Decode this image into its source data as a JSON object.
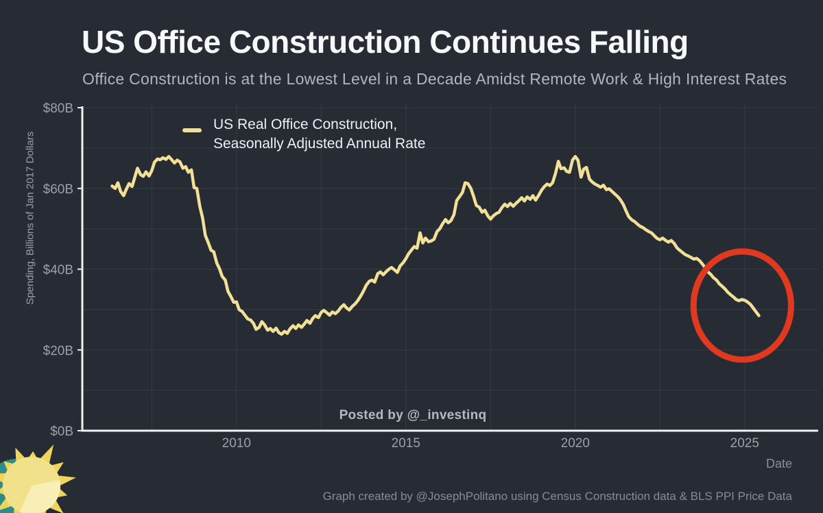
{
  "header": {
    "title": "US Office Construction Continues Falling",
    "subtitle": "Office Construction is at the Lowest Level in a Decade Amidst Remote Work & High Interest Rates"
  },
  "legend": {
    "line1": "US Real Office Construction,",
    "line2": "Seasonally Adjusted Annual Rate",
    "swatch_color": "#f1e096"
  },
  "watermark": {
    "text": "Posted by @_investinq"
  },
  "footer": {
    "x_axis_label": "Date",
    "credit": "Graph created by @JosephPolitano using Census Construction data & BLS PPI Price Data"
  },
  "style": {
    "background": "#262b34",
    "grid_color": "#353c45",
    "axis_color": "#eef0f2",
    "tick_color": "#9aa1a8",
    "line_color": "#f1e096",
    "annotation_color": "#e0391f",
    "sun_teal": "#2e8b89",
    "sun_ray": "#efd45c",
    "sun_body": "#f1e18a",
    "sun_wedge": "#f7efb5"
  },
  "chart_data": {
    "type": "line",
    "title": "US Office Construction Continues Falling",
    "subtitle": "Office Construction is at the Lowest Level in a Decade Amidst Remote Work & High Interest Rates",
    "xlabel": "Date",
    "ylabel": "Spending, Billions of Jan 2017 Dollars",
    "xlim": [
      2005.45,
      2027.17
    ],
    "ylim": [
      0,
      80
    ],
    "grid": "on",
    "legend_position": "top-left-inside",
    "x_ticks": [
      {
        "value": 2010,
        "label": "2010"
      },
      {
        "value": 2015,
        "label": "2015"
      },
      {
        "value": 2020,
        "label": "2020"
      },
      {
        "value": 2025,
        "label": "2025"
      }
    ],
    "y_ticks": [
      {
        "value": 0,
        "label": "$0B"
      },
      {
        "value": 20,
        "label": "$20B"
      },
      {
        "value": 40,
        "label": "$40B"
      },
      {
        "value": 60,
        "label": "$60B"
      },
      {
        "value": 80,
        "label": "$80B"
      }
    ],
    "x_gridlines": [
      2007.5,
      2010,
      2012.5,
      2015,
      2017.5,
      2020,
      2022.5,
      2025
    ],
    "y_gridlines": [
      10,
      20,
      30,
      40,
      50,
      60,
      70,
      80
    ],
    "series": [
      {
        "name": "US Real Office Construction, Seasonally Adjusted Annual Rate",
        "color": "#f1e096",
        "units": "billions of Jan 2017 dollars, SAAR",
        "points": [
          [
            2006.33,
            60.6
          ],
          [
            2006.42,
            60.0
          ],
          [
            2006.5,
            61.4
          ],
          [
            2006.58,
            59.3
          ],
          [
            2006.67,
            58.2
          ],
          [
            2006.75,
            59.8
          ],
          [
            2006.83,
            61.2
          ],
          [
            2006.92,
            60.5
          ],
          [
            2007.0,
            62.8
          ],
          [
            2007.08,
            65.0
          ],
          [
            2007.17,
            63.4
          ],
          [
            2007.25,
            63.0
          ],
          [
            2007.33,
            64.1
          ],
          [
            2007.42,
            63.1
          ],
          [
            2007.5,
            64.4
          ],
          [
            2007.58,
            66.5
          ],
          [
            2007.67,
            67.3
          ],
          [
            2007.75,
            67.1
          ],
          [
            2007.83,
            67.6
          ],
          [
            2007.92,
            67.2
          ],
          [
            2008.0,
            67.9
          ],
          [
            2008.08,
            67.2
          ],
          [
            2008.17,
            66.3
          ],
          [
            2008.25,
            67.0
          ],
          [
            2008.33,
            66.6
          ],
          [
            2008.42,
            65.0
          ],
          [
            2008.5,
            65.4
          ],
          [
            2008.58,
            64.0
          ],
          [
            2008.67,
            64.6
          ],
          [
            2008.75,
            60.2
          ],
          [
            2008.83,
            60.0
          ],
          [
            2008.92,
            55.5
          ],
          [
            2009.0,
            52.7
          ],
          [
            2009.08,
            48.4
          ],
          [
            2009.17,
            46.5
          ],
          [
            2009.25,
            44.7
          ],
          [
            2009.33,
            44.3
          ],
          [
            2009.42,
            41.5
          ],
          [
            2009.5,
            40.1
          ],
          [
            2009.58,
            38.2
          ],
          [
            2009.67,
            37.3
          ],
          [
            2009.75,
            34.5
          ],
          [
            2009.83,
            33.3
          ],
          [
            2009.92,
            31.8
          ],
          [
            2010.0,
            31.9
          ],
          [
            2010.08,
            30.0
          ],
          [
            2010.17,
            29.5
          ],
          [
            2010.25,
            28.6
          ],
          [
            2010.33,
            27.7
          ],
          [
            2010.42,
            27.4
          ],
          [
            2010.5,
            26.6
          ],
          [
            2010.58,
            25.1
          ],
          [
            2010.67,
            25.6
          ],
          [
            2010.75,
            27.0
          ],
          [
            2010.83,
            26.2
          ],
          [
            2010.92,
            24.9
          ],
          [
            2011.0,
            25.3
          ],
          [
            2011.08,
            24.6
          ],
          [
            2011.17,
            25.4
          ],
          [
            2011.25,
            24.3
          ],
          [
            2011.33,
            23.9
          ],
          [
            2011.42,
            24.6
          ],
          [
            2011.5,
            24.1
          ],
          [
            2011.58,
            25.2
          ],
          [
            2011.67,
            26.0
          ],
          [
            2011.75,
            25.3
          ],
          [
            2011.83,
            26.2
          ],
          [
            2011.92,
            25.6
          ],
          [
            2012.0,
            26.4
          ],
          [
            2012.08,
            27.3
          ],
          [
            2012.17,
            26.6
          ],
          [
            2012.25,
            27.8
          ],
          [
            2012.33,
            28.5
          ],
          [
            2012.42,
            28.0
          ],
          [
            2012.5,
            29.3
          ],
          [
            2012.58,
            29.8
          ],
          [
            2012.67,
            29.2
          ],
          [
            2012.75,
            28.6
          ],
          [
            2012.83,
            29.4
          ],
          [
            2012.92,
            29.0
          ],
          [
            2013.0,
            29.6
          ],
          [
            2013.08,
            30.5
          ],
          [
            2013.17,
            31.2
          ],
          [
            2013.25,
            30.4
          ],
          [
            2013.33,
            29.9
          ],
          [
            2013.42,
            30.8
          ],
          [
            2013.5,
            31.4
          ],
          [
            2013.58,
            32.2
          ],
          [
            2013.67,
            33.4
          ],
          [
            2013.75,
            34.6
          ],
          [
            2013.83,
            36.0
          ],
          [
            2013.92,
            37.0
          ],
          [
            2014.0,
            37.3
          ],
          [
            2014.08,
            36.8
          ],
          [
            2014.17,
            38.9
          ],
          [
            2014.25,
            39.3
          ],
          [
            2014.33,
            38.6
          ],
          [
            2014.42,
            39.4
          ],
          [
            2014.5,
            40.0
          ],
          [
            2014.58,
            40.4
          ],
          [
            2014.67,
            39.8
          ],
          [
            2014.75,
            39.2
          ],
          [
            2014.83,
            40.8
          ],
          [
            2014.92,
            41.6
          ],
          [
            2015.0,
            42.6
          ],
          [
            2015.08,
            43.8
          ],
          [
            2015.17,
            44.8
          ],
          [
            2015.25,
            45.6
          ],
          [
            2015.33,
            45.2
          ],
          [
            2015.42,
            49.0
          ],
          [
            2015.5,
            46.5
          ],
          [
            2015.58,
            47.7
          ],
          [
            2015.67,
            46.8
          ],
          [
            2015.75,
            47.0
          ],
          [
            2015.83,
            47.4
          ],
          [
            2015.92,
            49.3
          ],
          [
            2016.0,
            50.0
          ],
          [
            2016.08,
            51.2
          ],
          [
            2016.17,
            52.3
          ],
          [
            2016.25,
            51.5
          ],
          [
            2016.33,
            52.0
          ],
          [
            2016.42,
            53.5
          ],
          [
            2016.5,
            57.0
          ],
          [
            2016.58,
            57.9
          ],
          [
            2016.67,
            59.0
          ],
          [
            2016.75,
            61.4
          ],
          [
            2016.83,
            61.2
          ],
          [
            2016.92,
            60.0
          ],
          [
            2017.0,
            58.0
          ],
          [
            2017.08,
            55.8
          ],
          [
            2017.17,
            55.3
          ],
          [
            2017.25,
            54.1
          ],
          [
            2017.33,
            54.6
          ],
          [
            2017.42,
            53.2
          ],
          [
            2017.5,
            52.4
          ],
          [
            2017.58,
            53.2
          ],
          [
            2017.67,
            53.8
          ],
          [
            2017.75,
            54.1
          ],
          [
            2017.83,
            55.2
          ],
          [
            2017.92,
            56.1
          ],
          [
            2018.0,
            55.5
          ],
          [
            2018.08,
            56.3
          ],
          [
            2018.17,
            55.6
          ],
          [
            2018.25,
            56.3
          ],
          [
            2018.33,
            56.9
          ],
          [
            2018.42,
            57.7
          ],
          [
            2018.5,
            56.9
          ],
          [
            2018.58,
            57.9
          ],
          [
            2018.67,
            57.3
          ],
          [
            2018.75,
            58.2
          ],
          [
            2018.83,
            57.1
          ],
          [
            2018.92,
            58.3
          ],
          [
            2019.0,
            59.5
          ],
          [
            2019.08,
            60.4
          ],
          [
            2019.17,
            61.1
          ],
          [
            2019.25,
            60.7
          ],
          [
            2019.33,
            61.4
          ],
          [
            2019.42,
            63.8
          ],
          [
            2019.5,
            66.7
          ],
          [
            2019.58,
            64.9
          ],
          [
            2019.67,
            65.1
          ],
          [
            2019.75,
            64.2
          ],
          [
            2019.83,
            64.0
          ],
          [
            2019.92,
            67.0
          ],
          [
            2020.0,
            67.9
          ],
          [
            2020.08,
            67.0
          ],
          [
            2020.17,
            62.8
          ],
          [
            2020.25,
            64.8
          ],
          [
            2020.33,
            65.2
          ],
          [
            2020.42,
            62.3
          ],
          [
            2020.5,
            61.6
          ],
          [
            2020.58,
            61.1
          ],
          [
            2020.67,
            60.7
          ],
          [
            2020.75,
            60.3
          ],
          [
            2020.83,
            60.8
          ],
          [
            2020.92,
            59.7
          ],
          [
            2021.0,
            59.9
          ],
          [
            2021.08,
            59.3
          ],
          [
            2021.17,
            58.6
          ],
          [
            2021.25,
            58.0
          ],
          [
            2021.33,
            57.2
          ],
          [
            2021.42,
            56.0
          ],
          [
            2021.5,
            54.4
          ],
          [
            2021.58,
            53.0
          ],
          [
            2021.67,
            52.2
          ],
          [
            2021.75,
            51.8
          ],
          [
            2021.83,
            51.2
          ],
          [
            2021.92,
            50.6
          ],
          [
            2022.0,
            50.3
          ],
          [
            2022.08,
            49.8
          ],
          [
            2022.17,
            49.3
          ],
          [
            2022.25,
            49.0
          ],
          [
            2022.33,
            48.3
          ],
          [
            2022.42,
            47.6
          ],
          [
            2022.5,
            47.3
          ],
          [
            2022.58,
            47.7
          ],
          [
            2022.67,
            47.1
          ],
          [
            2022.75,
            46.7
          ],
          [
            2022.83,
            47.1
          ],
          [
            2022.92,
            46.4
          ],
          [
            2023.0,
            45.3
          ],
          [
            2023.08,
            44.7
          ],
          [
            2023.17,
            44.1
          ],
          [
            2023.25,
            43.6
          ],
          [
            2023.33,
            43.3
          ],
          [
            2023.42,
            42.9
          ],
          [
            2023.5,
            42.5
          ],
          [
            2023.58,
            42.7
          ],
          [
            2023.67,
            42.1
          ],
          [
            2023.75,
            41.3
          ],
          [
            2023.83,
            40.4
          ],
          [
            2023.92,
            39.3
          ],
          [
            2024.0,
            38.7
          ],
          [
            2024.08,
            37.9
          ],
          [
            2024.17,
            37.3
          ],
          [
            2024.25,
            36.4
          ],
          [
            2024.33,
            35.8
          ],
          [
            2024.42,
            35.1
          ],
          [
            2024.5,
            34.3
          ],
          [
            2024.58,
            33.7
          ],
          [
            2024.67,
            33.1
          ],
          [
            2024.75,
            32.5
          ],
          [
            2024.83,
            32.2
          ],
          [
            2024.92,
            32.5
          ],
          [
            2025.0,
            32.3
          ],
          [
            2025.08,
            31.9
          ],
          [
            2025.17,
            31.3
          ],
          [
            2025.25,
            30.4
          ],
          [
            2025.33,
            29.5
          ],
          [
            2025.42,
            28.5
          ]
        ]
      }
    ],
    "annotation": {
      "shape": "ellipse",
      "purpose": "highlights recent decline to decade low",
      "center_year": 2024.93,
      "center_value": 31.0,
      "radius_years": 1.44,
      "radius_value": 13.4,
      "color": "#e0391f",
      "stroke_width": 9
    }
  }
}
